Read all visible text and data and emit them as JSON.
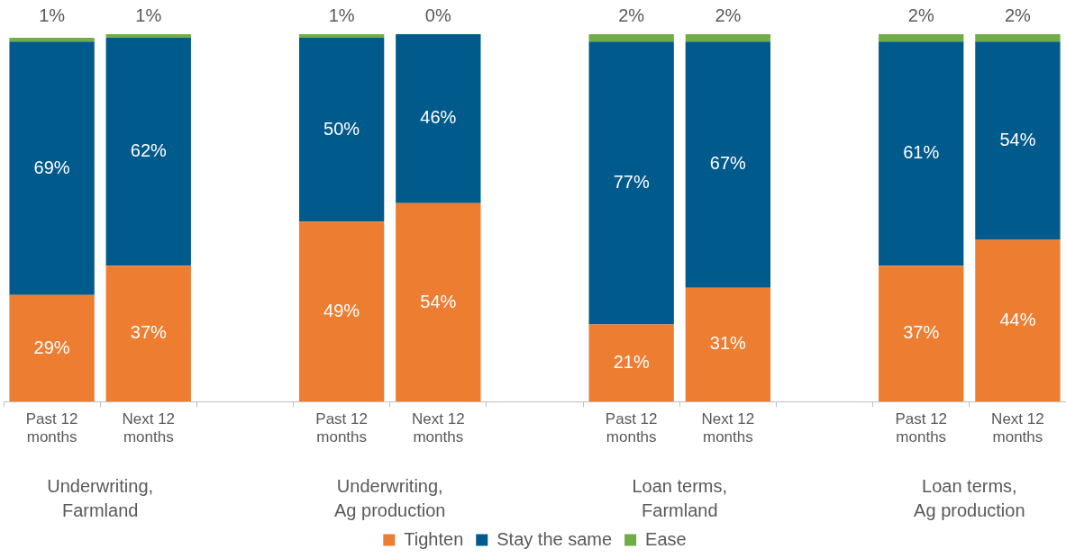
{
  "chart_data": {
    "type": "bar",
    "stacked": true,
    "legend": "bottom",
    "tick_labels": "x",
    "categories": [
      "Past 12 months",
      "Next 12 months",
      null,
      "Past 12 months",
      "Next 12 months",
      null,
      "Past 12 months",
      "Next 12 months",
      null,
      "Past 12 months",
      "Next 12 months"
    ],
    "series": [
      {
        "name": "Tighten",
        "color": "#ed7d31",
        "values": [
          29,
          37,
          null,
          49,
          54,
          null,
          21,
          31,
          null,
          37,
          44
        ],
        "value_labels": [
          "29%",
          "37%",
          null,
          "49%",
          "54%",
          null,
          "21%",
          "31%",
          null,
          "37%",
          "44%"
        ]
      },
      {
        "name": "Stay the same",
        "color": "#005a8c",
        "values": [
          69,
          62,
          null,
          50,
          46,
          null,
          77,
          67,
          null,
          61,
          54
        ],
        "value_labels": [
          "69%",
          "62%",
          null,
          "50%",
          "46%",
          null,
          "77%",
          "67%",
          null,
          "61%",
          "54%"
        ]
      },
      {
        "name": "Ease",
        "color": "#70ad47",
        "values": [
          1,
          1,
          null,
          1,
          0,
          null,
          2,
          2,
          null,
          2,
          2
        ],
        "value_labels": [
          "1%",
          "1%",
          null,
          "1%",
          "0%",
          null,
          "2%",
          "2%",
          null,
          "2%",
          "2%"
        ]
      }
    ],
    "annotations": [
      "Underwriting, Farmland",
      "Underwriting, Ag production",
      "Loan terms, Farmland",
      "Loan terms, Ag production"
    ]
  }
}
